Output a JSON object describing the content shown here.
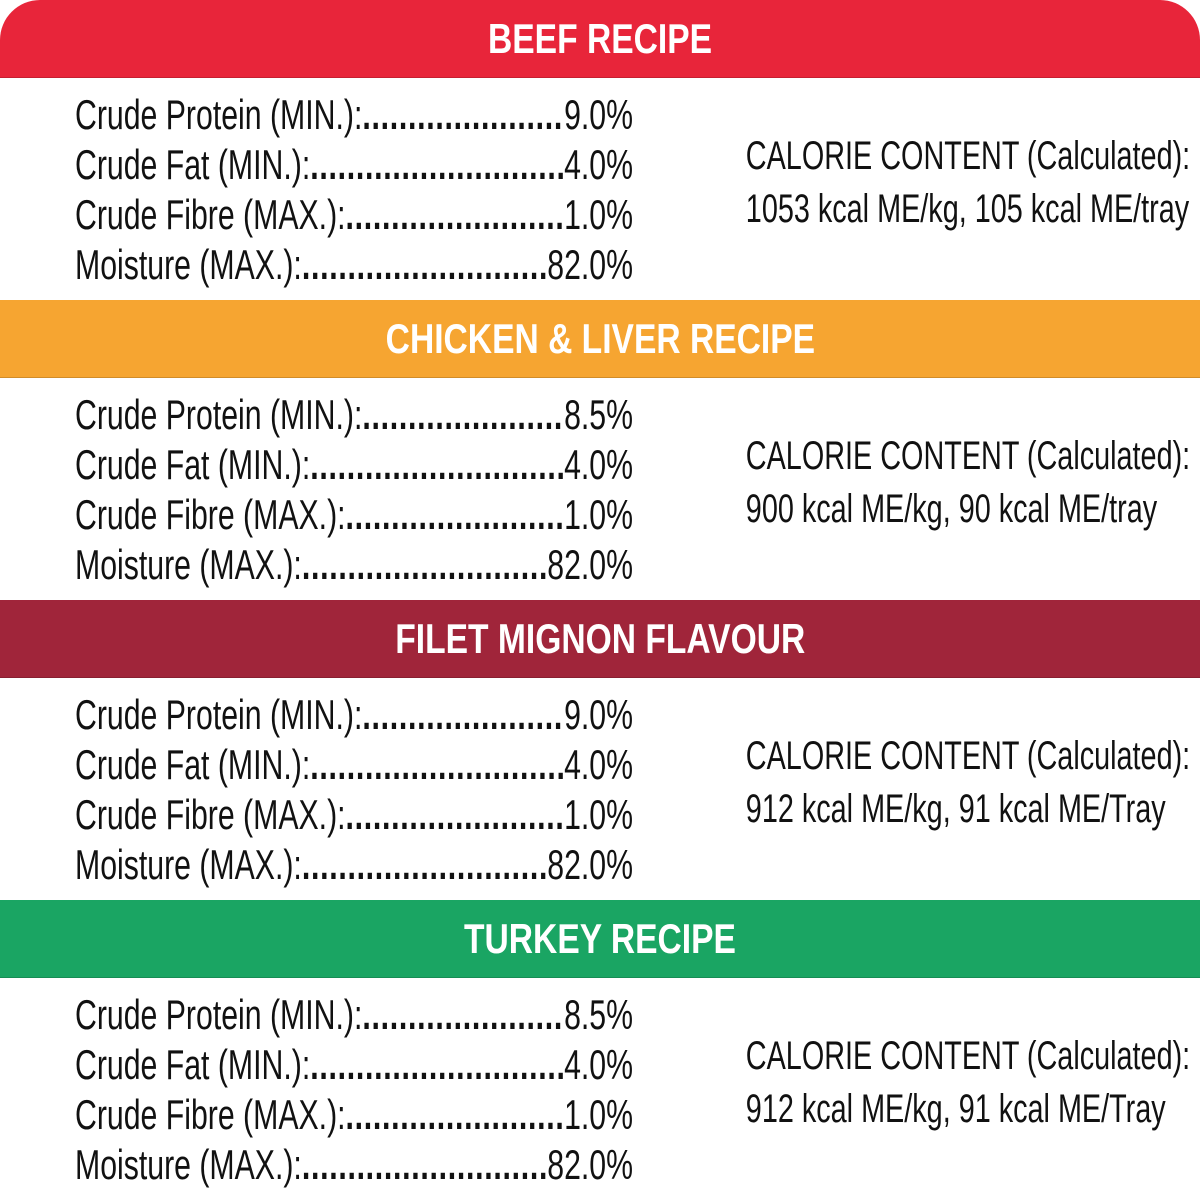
{
  "sections": [
    {
      "title": "BEEF RECIPE",
      "color": "#e8253a",
      "rows": [
        {
          "label": "Crude Protein (MIN.):",
          "value": "9.0%"
        },
        {
          "label": "Crude Fat (MIN.):",
          "value": "4.0%"
        },
        {
          "label": "Crude Fibre (MAX.):",
          "value": "1.0%"
        },
        {
          "label": "Moisture (MAX.):",
          "value": "82.0%"
        }
      ],
      "calorie_title": "CALORIE CONTENT (Calculated):",
      "calorie_value": "1053 kcal ME/kg, 105 kcal ME/tray"
    },
    {
      "title": "CHICKEN & LIVER RECIPE",
      "color": "#f6a531",
      "rows": [
        {
          "label": "Crude Protein (MIN.):",
          "value": "8.5%"
        },
        {
          "label": "Crude Fat (MIN.):",
          "value": "4.0%"
        },
        {
          "label": "Crude Fibre (MAX.):",
          "value": "1.0%"
        },
        {
          "label": "Moisture (MAX.):",
          "value": "82.0%"
        }
      ],
      "calorie_title": "CALORIE CONTENT (Calculated):",
      "calorie_value": "900 kcal ME/kg, 90 kcal ME/tray"
    },
    {
      "title": "FILET MIGNON FLAVOUR",
      "color": "#a0253a",
      "rows": [
        {
          "label": "Crude Protein (MIN.):",
          "value": "9.0%"
        },
        {
          "label": "Crude Fat (MIN.):",
          "value": "4.0%"
        },
        {
          "label": "Crude Fibre (MAX.):",
          "value": "1.0%"
        },
        {
          "label": "Moisture (MAX.):",
          "value": "82.0%"
        }
      ],
      "calorie_title": "CALORIE CONTENT (Calculated):",
      "calorie_value": "912 kcal ME/kg, 91 kcal ME/Tray"
    },
    {
      "title": "TURKEY RECIPE",
      "color": "#1aa563",
      "rows": [
        {
          "label": "Crude Protein (MIN.):",
          "value": "8.5%"
        },
        {
          "label": "Crude Fat (MIN.):",
          "value": "4.0%"
        },
        {
          "label": "Crude Fibre (MAX.):",
          "value": "1.0%"
        },
        {
          "label": "Moisture (MAX.):",
          "value": "82.0%"
        }
      ],
      "calorie_title": "CALORIE CONTENT (Calculated):",
      "calorie_value": "912 kcal ME/kg, 91 kcal ME/Tray"
    }
  ]
}
